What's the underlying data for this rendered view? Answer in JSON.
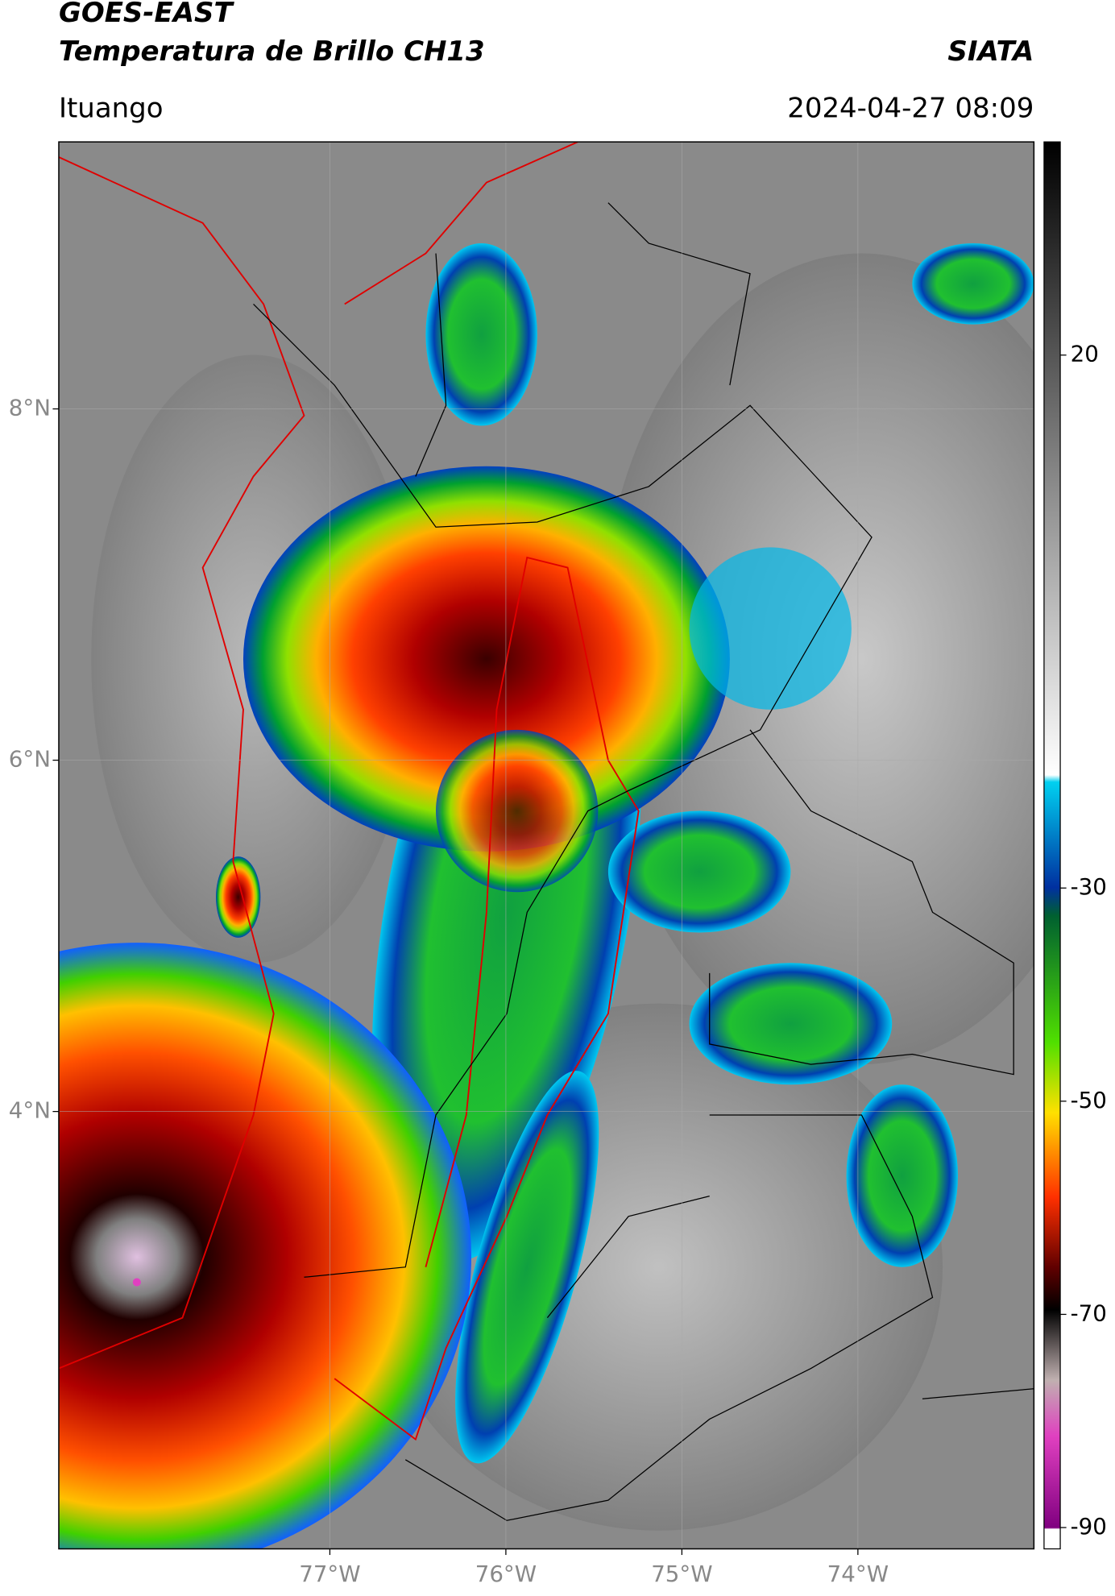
{
  "header": {
    "title": "GOES-EAST",
    "subtitle": "Temperatura de Brillo CH13",
    "source": "SIATA",
    "location": "Ituango",
    "datetime": "2024-04-27 08:09"
  },
  "map": {
    "xlim": [
      -78.54,
      -73.0
    ],
    "ylim": [
      1.51,
      9.52
    ],
    "xticks": [
      {
        "value": -77,
        "label": "77°W"
      },
      {
        "value": -76,
        "label": "76°W"
      },
      {
        "value": -75,
        "label": "75°W"
      },
      {
        "value": -74,
        "label": "74°W"
      }
    ],
    "yticks": [
      {
        "value": 8,
        "label": "8°N"
      },
      {
        "value": 6,
        "label": "6°N"
      },
      {
        "value": 4,
        "label": "4°N"
      }
    ]
  },
  "colorbar": {
    "lim": [
      -92,
      40
    ],
    "ticks": [
      20,
      -30,
      -50,
      -70,
      -90
    ]
  }
}
